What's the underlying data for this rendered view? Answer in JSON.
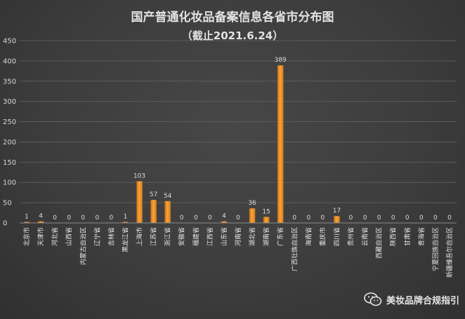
{
  "chart_data": {
    "type": "bar",
    "title": "国产普通化妆品备案信息各省市分布图",
    "subtitle": "（截止2021.6.24）",
    "xlabel": "",
    "ylabel": "",
    "ylim": [
      0,
      450
    ],
    "yticks": [
      0,
      50,
      100,
      150,
      200,
      250,
      300,
      350,
      400,
      450
    ],
    "grid": true,
    "categories": [
      "北京市",
      "天津市",
      "河北省",
      "山西省",
      "内蒙古自治区",
      "辽宁省",
      "吉林省",
      "黑龙江省",
      "上海市",
      "江苏省",
      "浙江省",
      "安徽省",
      "福建省",
      "江西省",
      "山东省",
      "河南省",
      "湖北省",
      "湖南省",
      "广东省",
      "广西壮族自治区",
      "海南省",
      "重庆市",
      "四川省",
      "贵州省",
      "云南省",
      "西藏自治区",
      "陕西省",
      "甘肃省",
      "青海省",
      "宁夏回族自治区",
      "新疆维吾尔自治区"
    ],
    "values": [
      1,
      4,
      0,
      0,
      0,
      0,
      0,
      1,
      103,
      57,
      54,
      0,
      0,
      0,
      4,
      0,
      36,
      15,
      389,
      0,
      0,
      0,
      17,
      0,
      0,
      0,
      0,
      0,
      0,
      0,
      0
    ],
    "bar_color": "#f0962a"
  },
  "watermark": {
    "icon": "wechat-icon",
    "text": "美妆品牌合规指引"
  }
}
